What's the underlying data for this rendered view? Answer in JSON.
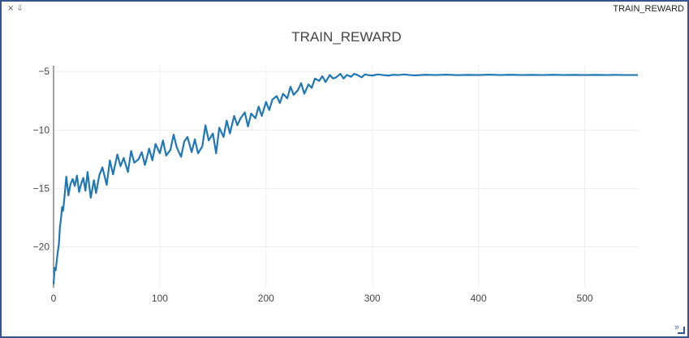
{
  "pane": {
    "title": "TRAIN_REWARD",
    "close_icon_glyph": "×",
    "download_icon_glyph": "⇩",
    "expand_glyph": "»"
  },
  "colors": {
    "line": "#1f77b4",
    "border": "#34548c",
    "grid": "#eeeeee",
    "text": "#444444"
  },
  "chart_data": {
    "type": "line",
    "title": "TRAIN_REWARD",
    "xlabel": "",
    "ylabel": "",
    "xlim": [
      0,
      550
    ],
    "ylim": [
      -23.5,
      -4.5
    ],
    "xticks": [
      0,
      100,
      200,
      300,
      400,
      500
    ],
    "yticks": [
      -5,
      -10,
      -15,
      -20
    ],
    "grid": true,
    "series": [
      {
        "x": [
          0,
          1,
          2,
          3,
          4,
          5,
          6,
          7,
          8,
          9,
          10,
          12,
          14,
          16,
          18,
          20,
          22,
          24,
          26,
          28,
          30,
          32,
          35,
          38,
          40,
          43,
          46,
          50,
          53,
          56,
          60,
          63,
          66,
          70,
          73,
          76,
          80,
          83,
          86,
          90,
          93,
          96,
          100,
          103,
          106,
          110,
          113,
          116,
          120,
          123,
          126,
          130,
          133,
          136,
          140,
          143,
          146,
          150,
          153,
          156,
          160,
          163,
          166,
          170,
          173,
          176,
          180,
          183,
          186,
          190,
          193,
          196,
          200,
          203,
          206,
          210,
          213,
          216,
          220,
          223,
          226,
          230,
          233,
          236,
          240,
          243,
          246,
          250,
          253,
          256,
          260,
          263,
          266,
          270,
          273,
          276,
          280,
          283,
          286,
          290,
          293,
          296,
          300,
          305,
          310,
          315,
          320,
          325,
          330,
          335,
          340,
          350,
          360,
          370,
          380,
          390,
          400,
          410,
          420,
          430,
          440,
          450,
          460,
          470,
          480,
          490,
          500,
          510,
          520,
          530,
          540,
          550
        ],
        "y": [
          -23.2,
          -21.8,
          -22.0,
          -21.2,
          -20.4,
          -19.8,
          -18.3,
          -17.6,
          -16.6,
          -16.9,
          -16.0,
          -14.0,
          -15.6,
          -14.6,
          -14.2,
          -14.8,
          -13.9,
          -15.3,
          -14.6,
          -14.1,
          -15.2,
          -13.6,
          -15.8,
          -14.3,
          -15.4,
          -13.9,
          -13.2,
          -14.7,
          -12.6,
          -13.8,
          -12.1,
          -13.1,
          -12.4,
          -13.6,
          -11.8,
          -12.8,
          -12.5,
          -11.9,
          -13.0,
          -11.6,
          -12.6,
          -11.2,
          -12.0,
          -10.9,
          -12.2,
          -11.7,
          -10.4,
          -11.5,
          -12.3,
          -11.0,
          -10.6,
          -11.9,
          -10.8,
          -12.0,
          -11.4,
          -9.6,
          -10.9,
          -10.3,
          -12.0,
          -9.8,
          -10.6,
          -9.2,
          -10.3,
          -8.8,
          -9.6,
          -9.0,
          -8.5,
          -9.7,
          -8.6,
          -9.0,
          -8.0,
          -8.8,
          -7.6,
          -8.3,
          -7.4,
          -7.1,
          -7.7,
          -6.9,
          -7.3,
          -6.3,
          -7.0,
          -6.6,
          -6.0,
          -6.9,
          -6.1,
          -6.4,
          -5.6,
          -5.8,
          -5.4,
          -5.9,
          -5.3,
          -5.6,
          -5.5,
          -5.2,
          -5.6,
          -5.3,
          -5.45,
          -5.2,
          -5.3,
          -5.5,
          -5.25,
          -5.3,
          -5.35,
          -5.25,
          -5.3,
          -5.35,
          -5.28,
          -5.3,
          -5.25,
          -5.3,
          -5.33,
          -5.28,
          -5.3,
          -5.27,
          -5.31,
          -5.29,
          -5.3,
          -5.27,
          -5.3,
          -5.28,
          -5.3,
          -5.29,
          -5.3,
          -5.28,
          -5.3,
          -5.29,
          -5.3,
          -5.29,
          -5.3,
          -5.29,
          -5.3,
          -5.3
        ]
      }
    ]
  }
}
